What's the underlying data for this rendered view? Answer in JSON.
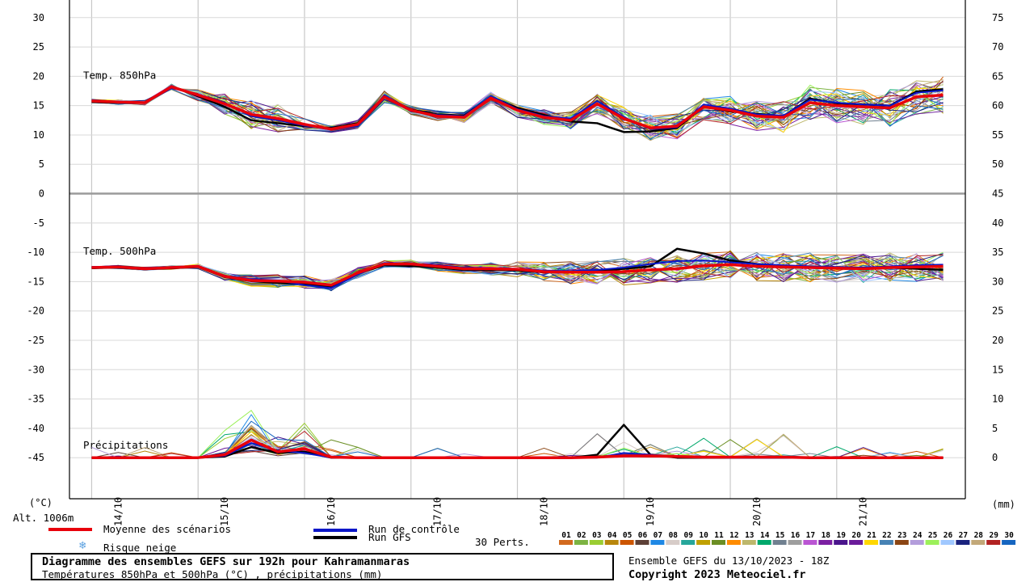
{
  "chart_data": {
    "type": "line",
    "title": "Diagramme des ensembles GEFS sur 192h pour Kahramanmaras",
    "subtitle": "Températures 850hPa et 500hPa (°C) , précipitations (mm)",
    "left_axis_label": "(°C)",
    "right_axis_label": "(mm)",
    "left_ticks": [
      30,
      25,
      20,
      15,
      10,
      5,
      0,
      -5,
      -10,
      -15,
      -20,
      -25,
      -30,
      -35,
      -40,
      -45
    ],
    "right_ticks": [
      75,
      70,
      65,
      60,
      55,
      50,
      45,
      40,
      35,
      30,
      25,
      20,
      15,
      10,
      5,
      0
    ],
    "ylim_temp": [
      -52,
      33
    ],
    "xlim_hours": [
      -5,
      197
    ],
    "date_labels": [
      "14/10",
      "15/10",
      "16/10",
      "17/10",
      "18/10",
      "19/10",
      "20/10",
      "21/10"
    ],
    "date_hours": [
      6,
      30,
      54,
      78,
      102,
      126,
      150,
      174
    ],
    "panel_labels": {
      "t850": "Temp. 850hPa",
      "t500": "Temp. 500hPa",
      "precip": "Précipitations"
    },
    "hours": [
      0,
      6,
      12,
      18,
      24,
      30,
      36,
      42,
      48,
      54,
      60,
      66,
      72,
      78,
      84,
      90,
      96,
      102,
      108,
      114,
      120,
      126,
      132,
      138,
      144,
      150,
      156,
      162,
      168,
      174,
      180,
      186,
      192
    ],
    "series": [
      {
        "name": "Moyenne des scénarios",
        "color": "#e8000b",
        "width": 3.5,
        "t850": [
          15.8,
          15.6,
          15.5,
          18.2,
          16.8,
          15.3,
          13.5,
          12.8,
          11.8,
          11.0,
          11.8,
          16.5,
          14.2,
          13.2,
          13.0,
          16.3,
          14.2,
          13.0,
          12.5,
          15.3,
          12.8,
          11.2,
          11.5,
          14.8,
          14.2,
          13.2,
          13.0,
          15.5,
          15.0,
          14.8,
          14.6,
          16.5,
          16.8
        ],
        "t500": [
          -12.6,
          -12.5,
          -12.8,
          -12.6,
          -12.4,
          -14.1,
          -14.8,
          -14.9,
          -15.1,
          -15.6,
          -13.5,
          -12.0,
          -12.0,
          -12.4,
          -12.8,
          -12.8,
          -12.9,
          -13.3,
          -13.4,
          -13.4,
          -13.3,
          -13.0,
          -12.8,
          -12.3,
          -12.1,
          -12.4,
          -12.5,
          -12.6,
          -12.7,
          -12.8,
          -12.6,
          -12.5,
          -12.4
        ],
        "precip": [
          0,
          0,
          0,
          0,
          0,
          0.5,
          3.0,
          1.0,
          1.5,
          0.1,
          0,
          0,
          0,
          0,
          0,
          0,
          0,
          0,
          0,
          0.1,
          0.3,
          0.3,
          0.2,
          0.1,
          0.1,
          0.1,
          0.1,
          0,
          0,
          0,
          0,
          0,
          0
        ]
      },
      {
        "name": "Run de contrôle",
        "color": "#0a16c8",
        "width": 2,
        "t850": [
          15.9,
          15.7,
          15.4,
          18.0,
          16.9,
          15.5,
          13.2,
          12.5,
          11.6,
          10.9,
          11.5,
          16.8,
          14.0,
          13.4,
          13.2,
          16.6,
          14.4,
          13.2,
          12.8,
          15.8,
          13.0,
          11.0,
          11.3,
          15.2,
          14.5,
          13.5,
          13.3,
          16.0,
          15.5,
          15.2,
          15.0,
          17.2,
          17.6
        ],
        "t500": [
          -12.5,
          -12.4,
          -12.7,
          -12.5,
          -12.3,
          -14.0,
          -14.6,
          -14.8,
          -15.6,
          -16.1,
          -13.8,
          -11.8,
          -11.9,
          -12.2,
          -12.6,
          -12.7,
          -12.8,
          -13.1,
          -13.2,
          -13.0,
          -12.6,
          -12.0,
          -11.5,
          -11.4,
          -11.7,
          -12.0,
          -12.2,
          -12.4,
          -12.5,
          -12.6,
          -12.4,
          -12.2,
          -12.1
        ],
        "precip": [
          0,
          0,
          0,
          0,
          0,
          0.3,
          2.5,
          1.2,
          0.8,
          0,
          0,
          0,
          0,
          0,
          0,
          0,
          0,
          0,
          0,
          0,
          0.8,
          0.5,
          0.2,
          0.1,
          0,
          0,
          0,
          0,
          0,
          0,
          0,
          0,
          0
        ]
      },
      {
        "name": "Run GFS",
        "color": "#000000",
        "width": 2.5,
        "t850": [
          15.6,
          15.5,
          15.5,
          18.3,
          16.6,
          14.8,
          12.5,
          12.0,
          11.5,
          11.2,
          12.0,
          16.6,
          14.3,
          13.5,
          13.3,
          16.5,
          14.6,
          13.4,
          12.3,
          12.0,
          10.5,
          10.6,
          11.2,
          14.8,
          14.0,
          13.6,
          13.2,
          16.2,
          15.4,
          15.2,
          15.0,
          17.4,
          17.8
        ],
        "t500": [
          -12.7,
          -12.6,
          -12.9,
          -12.7,
          -12.5,
          -14.2,
          -14.9,
          -15.2,
          -15.4,
          -15.8,
          -13.6,
          -12.2,
          -12.3,
          -12.6,
          -13.0,
          -13.0,
          -13.1,
          -13.4,
          -13.4,
          -13.2,
          -12.8,
          -12.4,
          -9.4,
          -10.2,
          -11.4,
          -12.0,
          -12.3,
          -12.5,
          -12.6,
          -12.7,
          -12.6,
          -12.8,
          -13.0
        ],
        "precip": [
          0,
          0,
          0,
          0,
          0,
          0.2,
          1.8,
          0.8,
          1.0,
          0,
          0,
          0,
          0,
          0,
          0,
          0,
          0,
          0,
          0,
          0.5,
          5.6,
          0.5,
          0,
          0,
          0,
          0,
          0,
          0,
          0,
          0,
          0,
          0,
          0
        ]
      }
    ],
    "perturbations": {
      "label": "30 Perts.",
      "numbers": [
        "01",
        "02",
        "03",
        "04",
        "05",
        "06",
        "07",
        "08",
        "09",
        "10",
        "11",
        "12",
        "13",
        "14",
        "15",
        "16",
        "17",
        "18",
        "19",
        "20",
        "21",
        "22",
        "23",
        "24",
        "25",
        "26",
        "27",
        "28",
        "29",
        "30"
      ],
      "colors": [
        "#d2691e",
        "#7cb342",
        "#9acd32",
        "#b8860b",
        "#cc5500",
        "#5d4037",
        "#1e88e5",
        "#d7ccc8",
        "#26a69a",
        "#c0a000",
        "#6b8e23",
        "#ff8c00",
        "#bdb76b",
        "#00a86b",
        "#708090",
        "#9e9e9e",
        "#ba55d3",
        "#7b1fa2",
        "#4a148c",
        "#6a1b9a",
        "#ffd700",
        "#4682b4",
        "#8b4513",
        "#b39ddb",
        "#9cf05a",
        "#a0c8ff",
        "#1a237e",
        "#c2a878",
        "#b22222",
        "#1565c0"
      ],
      "t850_spread": [
        0.3,
        0.4,
        0.4,
        0.5,
        1.0,
        1.8,
        2.5,
        2.4,
        1.0,
        0.6,
        0.7,
        1.0,
        0.8,
        0.9,
        0.9,
        1.0,
        1.2,
        1.3,
        1.5,
        1.7,
        2.0,
        2.2,
        2.2,
        2.4,
        2.4,
        2.6,
        2.8,
        3.0,
        3.0,
        3.0,
        3.2,
        3.0,
        3.2
      ],
      "t500_spread": [
        0.2,
        0.3,
        0.3,
        0.3,
        0.4,
        0.7,
        1.0,
        1.1,
        1.1,
        1.0,
        0.9,
        0.7,
        0.7,
        0.8,
        1.0,
        1.1,
        1.3,
        1.6,
        2.0,
        2.2,
        2.3,
        2.3,
        2.4,
        2.4,
        2.4,
        2.5,
        2.5,
        2.5,
        2.5,
        2.5,
        2.5,
        2.5,
        2.5
      ]
    },
    "legend": {
      "mean": "Moyenne des scénarios",
      "control": "Run de contrôle",
      "gfs": "Run GFS",
      "snow": "Risque neige",
      "perts": "30 Perts."
    },
    "altitude": "Alt. 1006m"
  },
  "footer": {
    "run_info": "Ensemble GEFS du 13/10/2023 - 18Z",
    "copyright": "Copyright 2023 Meteociel.fr"
  }
}
